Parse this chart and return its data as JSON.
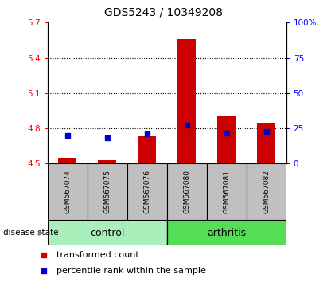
{
  "title": "GDS5243 / 10349208",
  "samples": [
    "GSM567074",
    "GSM567075",
    "GSM567076",
    "GSM567080",
    "GSM567081",
    "GSM567082"
  ],
  "transformed_counts": [
    4.55,
    4.53,
    4.73,
    5.56,
    4.9,
    4.85
  ],
  "percentile_ranks": [
    4.74,
    4.72,
    4.75,
    4.83,
    4.76,
    4.77
  ],
  "bar_base": 4.5,
  "ylim": [
    4.5,
    5.7
  ],
  "yticks_left": [
    4.5,
    4.8,
    5.1,
    5.4,
    5.7
  ],
  "yticks_right": [
    0,
    25,
    50,
    75,
    100
  ],
  "bar_color": "#CC0000",
  "marker_color": "#0000CC",
  "bar_width": 0.45,
  "sample_bg_color": "#C0C0C0",
  "control_color": "#AAEEBB",
  "arthritis_color": "#55DD55",
  "legend_labels": [
    "transformed count",
    "percentile rank within the sample"
  ],
  "gridline_yticks": [
    4.8,
    5.1,
    5.4
  ],
  "title_fontsize": 10,
  "tick_fontsize": 7.5,
  "sample_fontsize": 6.5,
  "group_fontsize": 9,
  "legend_fontsize": 8
}
